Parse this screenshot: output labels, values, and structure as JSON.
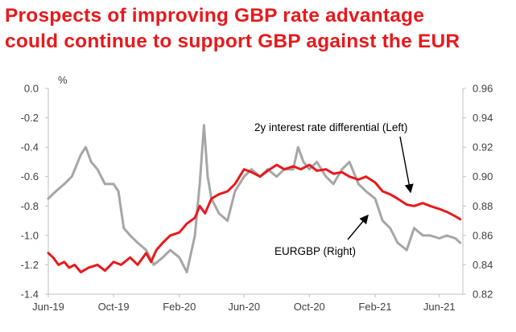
{
  "header": {
    "title_line1": "Prospects of improving GBP rate advantage",
    "title_line2": "could continue to support GBP against the EUR"
  },
  "colors": {
    "title": "#e8191c",
    "series_left": "#e8191c",
    "series_right": "#a6a6a6",
    "axis": "#bfbfbf",
    "text": "#404040"
  },
  "chart_data": {
    "type": "line",
    "title": "Prospects of improving GBP rate advantage could continue to support GBP against the EUR",
    "y_left_unit": "%",
    "xlim": [
      "2019-06-01",
      "2021-07-15"
    ],
    "x_ticks": [
      {
        "date": "2019-06-01",
        "label": "Jun-19"
      },
      {
        "date": "2019-10-01",
        "label": "Oct-19"
      },
      {
        "date": "2020-02-01",
        "label": "Feb-20"
      },
      {
        "date": "2020-06-01",
        "label": "Jun-20"
      },
      {
        "date": "2020-10-01",
        "label": "Oct-20"
      },
      {
        "date": "2021-02-01",
        "label": "Feb-21"
      },
      {
        "date": "2021-06-01",
        "label": "Jun-21"
      }
    ],
    "y_left": {
      "range": [
        -1.4,
        0.0
      ],
      "ticks": [
        0.0,
        -0.2,
        -0.4,
        -0.6,
        -0.8,
        -1.0,
        -1.2,
        -1.4
      ],
      "labels": [
        "0.0",
        "-0.2",
        "-0.4",
        "-0.6",
        "-0.8",
        "-1.0",
        "-1.2",
        "-1.4"
      ]
    },
    "y_right": {
      "range": [
        0.82,
        0.96
      ],
      "ticks": [
        0.96,
        0.94,
        0.92,
        0.9,
        0.88,
        0.86,
        0.84,
        0.82
      ],
      "labels": [
        "0.96",
        "0.94",
        "0.92",
        "0.90",
        "0.88",
        "0.86",
        "0.84",
        "0.82"
      ]
    },
    "grid": false,
    "series": [
      {
        "name": "2y interest rate differential (Left)",
        "axis": "left",
        "color": "#e8191c",
        "points": [
          [
            "2019-06-01",
            -1.12
          ],
          [
            "2019-06-10",
            -1.15
          ],
          [
            "2019-06-20",
            -1.2
          ],
          [
            "2019-07-01",
            -1.18
          ],
          [
            "2019-07-10",
            -1.22
          ],
          [
            "2019-07-20",
            -1.2
          ],
          [
            "2019-08-01",
            -1.25
          ],
          [
            "2019-08-15",
            -1.22
          ],
          [
            "2019-09-01",
            -1.2
          ],
          [
            "2019-09-15",
            -1.24
          ],
          [
            "2019-10-01",
            -1.18
          ],
          [
            "2019-10-15",
            -1.2
          ],
          [
            "2019-11-01",
            -1.15
          ],
          [
            "2019-11-15",
            -1.2
          ],
          [
            "2019-12-01",
            -1.12
          ],
          [
            "2019-12-10",
            -1.18
          ],
          [
            "2019-12-20",
            -1.1
          ],
          [
            "2020-01-01",
            -1.05
          ],
          [
            "2020-01-15",
            -1.0
          ],
          [
            "2020-02-01",
            -0.98
          ],
          [
            "2020-02-15",
            -0.92
          ],
          [
            "2020-03-01",
            -0.88
          ],
          [
            "2020-03-10",
            -0.8
          ],
          [
            "2020-03-20",
            -0.85
          ],
          [
            "2020-04-01",
            -0.75
          ],
          [
            "2020-04-15",
            -0.72
          ],
          [
            "2020-05-01",
            -0.7
          ],
          [
            "2020-05-15",
            -0.65
          ],
          [
            "2020-06-01",
            -0.55
          ],
          [
            "2020-06-15",
            -0.57
          ],
          [
            "2020-07-01",
            -0.6
          ],
          [
            "2020-07-15",
            -0.56
          ],
          [
            "2020-08-01",
            -0.52
          ],
          [
            "2020-08-15",
            -0.55
          ],
          [
            "2020-09-01",
            -0.53
          ],
          [
            "2020-09-15",
            -0.55
          ],
          [
            "2020-10-01",
            -0.52
          ],
          [
            "2020-10-15",
            -0.56
          ],
          [
            "2020-11-01",
            -0.55
          ],
          [
            "2020-11-15",
            -0.58
          ],
          [
            "2020-12-01",
            -0.57
          ],
          [
            "2020-12-15",
            -0.6
          ],
          [
            "2021-01-01",
            -0.62
          ],
          [
            "2021-01-15",
            -0.6
          ],
          [
            "2021-02-01",
            -0.64
          ],
          [
            "2021-02-15",
            -0.7
          ],
          [
            "2021-03-01",
            -0.72
          ],
          [
            "2021-03-15",
            -0.75
          ],
          [
            "2021-04-01",
            -0.79
          ],
          [
            "2021-04-15",
            -0.8
          ],
          [
            "2021-05-01",
            -0.78
          ],
          [
            "2021-05-15",
            -0.8
          ],
          [
            "2021-06-01",
            -0.82
          ],
          [
            "2021-06-15",
            -0.84
          ],
          [
            "2021-07-01",
            -0.87
          ],
          [
            "2021-07-10",
            -0.89
          ]
        ]
      },
      {
        "name": "EURGBP (Right)",
        "axis": "right",
        "color": "#a6a6a6",
        "points": [
          [
            "2019-06-01",
            0.885
          ],
          [
            "2019-06-15",
            0.89
          ],
          [
            "2019-07-01",
            0.895
          ],
          [
            "2019-07-15",
            0.9
          ],
          [
            "2019-08-01",
            0.915
          ],
          [
            "2019-08-10",
            0.92
          ],
          [
            "2019-08-20",
            0.91
          ],
          [
            "2019-09-01",
            0.905
          ],
          [
            "2019-09-15",
            0.895
          ],
          [
            "2019-10-01",
            0.895
          ],
          [
            "2019-10-10",
            0.89
          ],
          [
            "2019-10-20",
            0.865
          ],
          [
            "2019-11-01",
            0.86
          ],
          [
            "2019-11-15",
            0.855
          ],
          [
            "2019-12-01",
            0.85
          ],
          [
            "2019-12-15",
            0.84
          ],
          [
            "2020-01-01",
            0.845
          ],
          [
            "2020-01-15",
            0.85
          ],
          [
            "2020-02-01",
            0.845
          ],
          [
            "2020-02-15",
            0.835
          ],
          [
            "2020-03-01",
            0.86
          ],
          [
            "2020-03-10",
            0.895
          ],
          [
            "2020-03-18",
            0.935
          ],
          [
            "2020-03-25",
            0.9
          ],
          [
            "2020-04-01",
            0.885
          ],
          [
            "2020-04-15",
            0.875
          ],
          [
            "2020-05-01",
            0.87
          ],
          [
            "2020-05-15",
            0.89
          ],
          [
            "2020-06-01",
            0.9
          ],
          [
            "2020-06-15",
            0.905
          ],
          [
            "2020-07-01",
            0.9
          ],
          [
            "2020-07-15",
            0.905
          ],
          [
            "2020-08-01",
            0.9
          ],
          [
            "2020-08-15",
            0.905
          ],
          [
            "2020-09-01",
            0.905
          ],
          [
            "2020-09-10",
            0.92
          ],
          [
            "2020-09-20",
            0.91
          ],
          [
            "2020-10-01",
            0.905
          ],
          [
            "2020-10-15",
            0.91
          ],
          [
            "2020-11-01",
            0.9
          ],
          [
            "2020-11-15",
            0.895
          ],
          [
            "2020-12-01",
            0.905
          ],
          [
            "2020-12-15",
            0.91
          ],
          [
            "2021-01-01",
            0.895
          ],
          [
            "2021-01-15",
            0.89
          ],
          [
            "2021-02-01",
            0.885
          ],
          [
            "2021-02-15",
            0.87
          ],
          [
            "2021-03-01",
            0.865
          ],
          [
            "2021-03-15",
            0.855
          ],
          [
            "2021-04-01",
            0.85
          ],
          [
            "2021-04-15",
            0.865
          ],
          [
            "2021-05-01",
            0.86
          ],
          [
            "2021-05-15",
            0.86
          ],
          [
            "2021-06-01",
            0.858
          ],
          [
            "2021-06-15",
            0.86
          ],
          [
            "2021-07-01",
            0.858
          ],
          [
            "2021-07-10",
            0.855
          ]
        ]
      }
    ],
    "annotations": [
      {
        "text": "2y interest rate differential (Left)",
        "arrow_to": [
          "2021-04-20",
          -0.78
        ]
      },
      {
        "text": "EURGBP (Right)",
        "arrow_to": [
          "2021-02-01",
          0.872
        ]
      }
    ]
  }
}
